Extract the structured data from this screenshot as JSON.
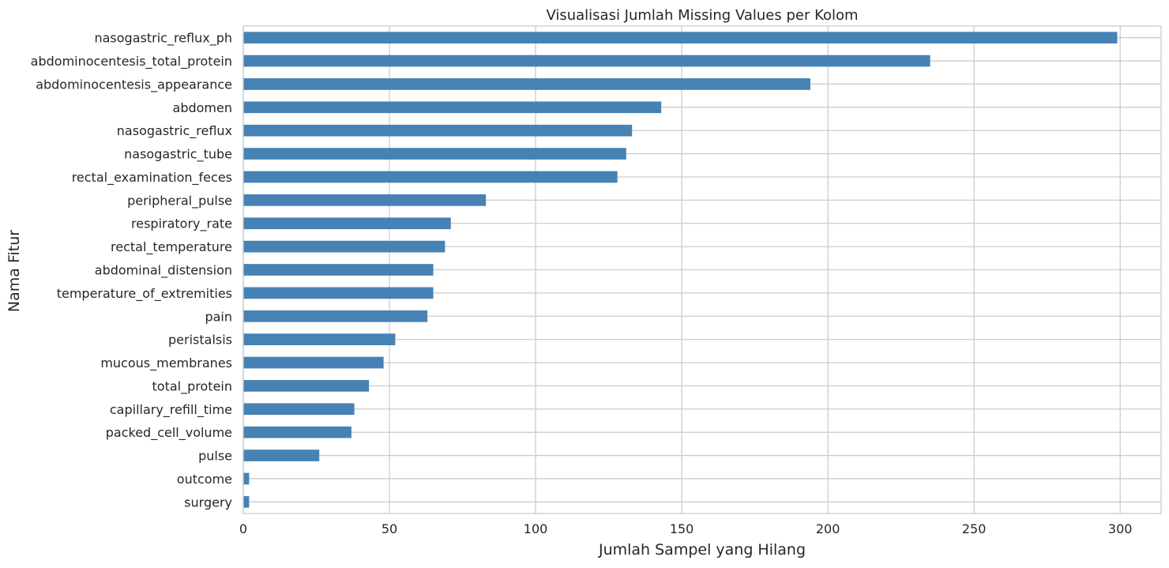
{
  "chart_data": {
    "type": "bar",
    "orientation": "horizontal",
    "title": "Visualisasi Jumlah Missing Values per Kolom",
    "xlabel": "Jumlah Sampel yang Hilang",
    "ylabel": "Nama Fitur",
    "xlim": [
      0,
      314
    ],
    "xticks": [
      0,
      50,
      100,
      150,
      200,
      250,
      300
    ],
    "grid": true,
    "bar_color": "#4682b4",
    "grid_color": "#cccccc",
    "categories": [
      "nasogastric_reflux_ph",
      "abdominocentesis_total_protein",
      "abdominocentesis_appearance",
      "abdomen",
      "nasogastric_reflux",
      "nasogastric_tube",
      "rectal_examination_feces",
      "peripheral_pulse",
      "respiratory_rate",
      "rectal_temperature",
      "abdominal_distension",
      "temperature_of_extremities",
      "pain",
      "peristalsis",
      "mucous_membranes",
      "total_protein",
      "capillary_refill_time",
      "packed_cell_volume",
      "pulse",
      "outcome",
      "surgery"
    ],
    "values": [
      299,
      235,
      194,
      143,
      133,
      131,
      128,
      83,
      71,
      69,
      65,
      65,
      63,
      52,
      48,
      43,
      38,
      37,
      26,
      2,
      2
    ]
  }
}
